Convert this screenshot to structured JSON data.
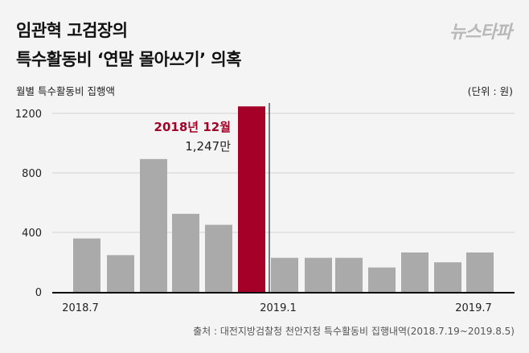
{
  "header": {
    "title_line1": "임관혁 고검장의",
    "title_line2": "특수활동비 ‘연말 몰아쓰기’ 의혹",
    "logo": "뉴스타파"
  },
  "chart_data": {
    "type": "bar",
    "subtitle": "월별 특수활동비 집행액",
    "unit": "(단위 : 원)",
    "categories": [
      "2018.7",
      "2018.8",
      "2018.9",
      "2018.10",
      "2018.11",
      "2018.12",
      "2019.1",
      "2019.2",
      "2019.3",
      "2019.4",
      "2019.5",
      "2019.6",
      "2019.7"
    ],
    "x_tick_labels": [
      "2018.7",
      "2019.1",
      "2019.7"
    ],
    "values": [
      359,
      247,
      893,
      525,
      451,
      1247,
      229,
      229,
      229,
      164,
      265,
      199,
      265
    ],
    "ylim": [
      0,
      1247
    ],
    "y_ticks": [
      0,
      400,
      800,
      1200
    ],
    "grid": true,
    "highlight_index": 5,
    "annotation": {
      "label": "2018년 12월",
      "value": "1,247만"
    },
    "colors": {
      "bar": "#aaaaaa",
      "highlight": "#a50027",
      "grid": "#dddddd",
      "axis": "#000000"
    }
  },
  "footer": {
    "source": "출처 : 대전지방검찰청 천안지청 특수활동비 집행내역(2018.7.19~2019.8.5)"
  }
}
